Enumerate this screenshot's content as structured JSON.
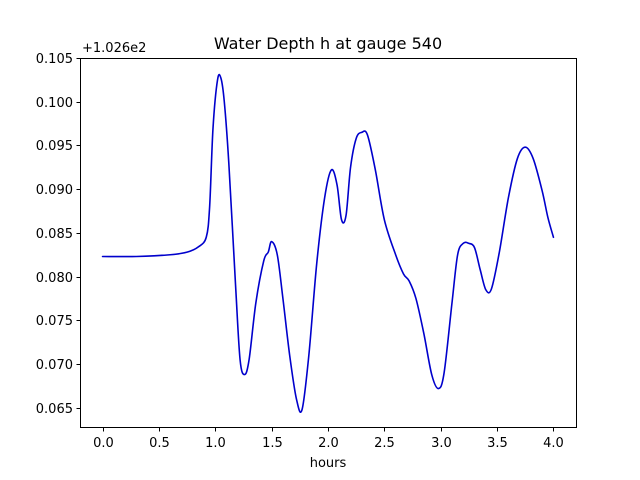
{
  "chart_data": {
    "type": "line",
    "title": "Water Depth h at gauge 540",
    "xlabel": "hours",
    "ylabel": "",
    "y_offset_label": "+1.026e2",
    "xlim": [
      -0.2,
      4.2
    ],
    "ylim": [
      0.0628,
      0.105
    ],
    "xticks": [
      0.0,
      0.5,
      1.0,
      1.5,
      2.0,
      2.5,
      3.0,
      3.5,
      4.0
    ],
    "xtick_labels": [
      "0.0",
      "0.5",
      "1.0",
      "1.5",
      "2.0",
      "2.5",
      "3.0",
      "3.5",
      "4.0"
    ],
    "yticks": [
      0.065,
      0.07,
      0.075,
      0.08,
      0.085,
      0.09,
      0.095,
      0.1,
      0.105
    ],
    "ytick_labels": [
      "0.065",
      "0.070",
      "0.075",
      "0.080",
      "0.085",
      "0.090",
      "0.095",
      "0.100",
      "0.105"
    ],
    "grid": false,
    "legend": "none",
    "series": [
      {
        "color": "#0000cc",
        "x": [
          0.0,
          0.3,
          0.6,
          0.75,
          0.85,
          0.92,
          0.95,
          0.98,
          1.02,
          1.05,
          1.08,
          1.12,
          1.18,
          1.22,
          1.26,
          1.3,
          1.36,
          1.43,
          1.47,
          1.5,
          1.55,
          1.6,
          1.66,
          1.72,
          1.77,
          1.83,
          1.9,
          1.97,
          2.03,
          2.08,
          2.12,
          2.16,
          2.2,
          2.25,
          2.3,
          2.35,
          2.42,
          2.5,
          2.6,
          2.67,
          2.72,
          2.78,
          2.85,
          2.92,
          2.98,
          3.03,
          3.1,
          3.15,
          3.2,
          3.25,
          3.3,
          3.35,
          3.4,
          3.45,
          3.52,
          3.6,
          3.68,
          3.75,
          3.82,
          3.9,
          3.95,
          4.0
        ],
        "y": [
          0.0823,
          0.0823,
          0.0825,
          0.0828,
          0.0834,
          0.0845,
          0.088,
          0.097,
          0.1025,
          0.1027,
          0.1,
          0.093,
          0.079,
          0.0705,
          0.0688,
          0.0705,
          0.077,
          0.0818,
          0.0828,
          0.084,
          0.0825,
          0.0775,
          0.071,
          0.066,
          0.0648,
          0.071,
          0.0815,
          0.089,
          0.0922,
          0.0905,
          0.0865,
          0.087,
          0.0925,
          0.0958,
          0.0965,
          0.0962,
          0.0922,
          0.0865,
          0.0825,
          0.0803,
          0.0795,
          0.0775,
          0.0735,
          0.0688,
          0.0672,
          0.069,
          0.077,
          0.0825,
          0.0838,
          0.0838,
          0.0833,
          0.0808,
          0.0785,
          0.0786,
          0.0828,
          0.089,
          0.0935,
          0.0948,
          0.0935,
          0.0898,
          0.0868,
          0.0845
        ]
      }
    ]
  }
}
